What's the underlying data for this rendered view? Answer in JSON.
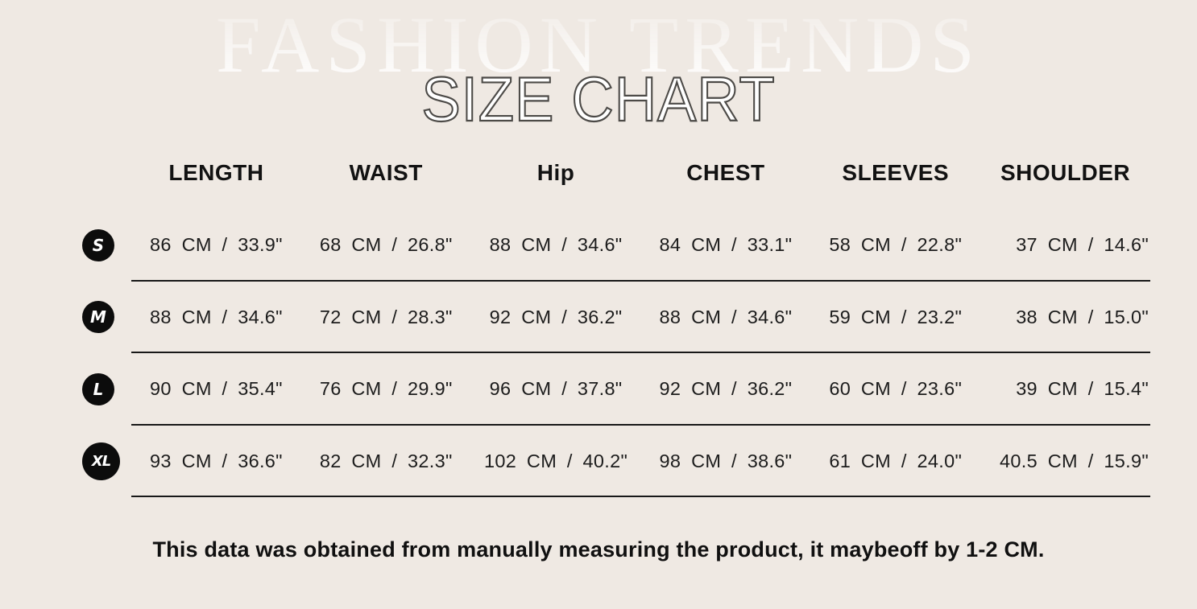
{
  "hero": {
    "background_text": "FASHION TRENDS",
    "title": "SIZE CHART"
  },
  "table": {
    "columns": [
      "LENGTH",
      "WAIST",
      "Hip",
      "CHEST",
      "SLEEVES",
      "SHOULDER"
    ],
    "rows": [
      {
        "size": "S",
        "cells": [
          "86 CM / 33.9\"",
          "68 CM / 26.8\"",
          "88 CM / 34.6\"",
          "84 CM / 33.1\"",
          "58 CM / 22.8\"",
          "37 CM / 14.6\""
        ]
      },
      {
        "size": "M",
        "cells": [
          "88 CM / 34.6\"",
          "72 CM / 28.3\"",
          "92 CM / 36.2\"",
          "88 CM / 34.6\"",
          "59 CM / 23.2\"",
          "38 CM / 15.0\""
        ]
      },
      {
        "size": "L",
        "cells": [
          "90 CM / 35.4\"",
          "76 CM / 29.9\"",
          "96 CM / 37.8\"",
          "92 CM / 36.2\"",
          "60 CM / 23.6\"",
          "39 CM / 15.4\""
        ]
      },
      {
        "size": "XL",
        "cells": [
          "93 CM / 36.6\"",
          "82 CM / 32.3\"",
          "102 CM / 40.2\"",
          "98 CM / 38.6\"",
          "61 CM / 24.0\"",
          "40.5 CM / 15.9\""
        ]
      }
    ]
  },
  "footer": {
    "note": "This data was obtained from manually measuring the product, it maybeoff by 1-2 CM."
  },
  "colors": {
    "background": "#efe9e3",
    "badge": "#0c0c0c",
    "badge_text": "#ffffff",
    "line": "#181818",
    "text": "#1a1a1a",
    "hero_text": "#ffffff",
    "title_outline": "#4c4a47"
  },
  "chart_data": {
    "type": "table",
    "title": "SIZE CHART",
    "subtitle": "FASHION TRENDS",
    "columns": [
      "LENGTH",
      "WAIST",
      "Hip",
      "CHEST",
      "SLEEVES",
      "SHOULDER"
    ],
    "row_labels": [
      "S",
      "M",
      "L",
      "XL"
    ],
    "values_cm": [
      [
        86,
        68,
        88,
        84,
        58,
        37
      ],
      [
        88,
        72,
        92,
        88,
        59,
        38
      ],
      [
        90,
        76,
        96,
        92,
        60,
        39
      ],
      [
        93,
        82,
        102,
        98,
        61,
        40.5
      ]
    ],
    "values_inch": [
      [
        33.9,
        26.8,
        34.6,
        33.1,
        22.8,
        14.6
      ],
      [
        34.6,
        28.3,
        36.2,
        34.6,
        23.2,
        15.0
      ],
      [
        35.4,
        29.9,
        37.8,
        36.2,
        23.6,
        15.4
      ],
      [
        36.6,
        32.3,
        40.2,
        38.6,
        24.0,
        15.9
      ]
    ],
    "units": [
      "CM",
      "inch"
    ],
    "note": "This data was obtained from manually measuring the product, it maybeoff by 1-2 CM."
  }
}
